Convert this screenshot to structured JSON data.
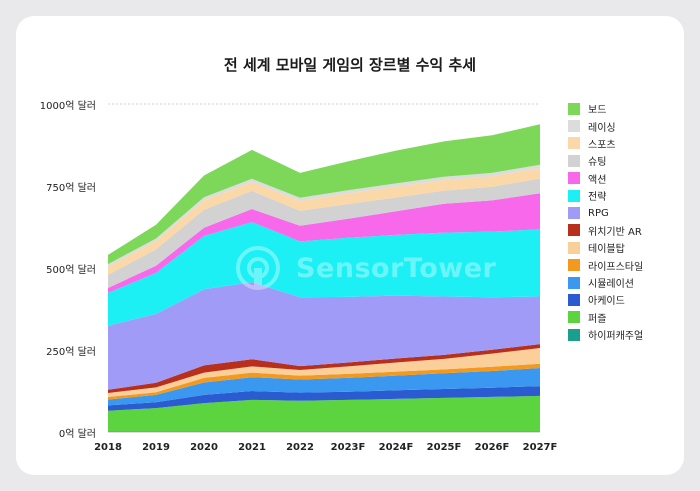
{
  "chart_data": {
    "type": "area",
    "title": "전 세계 모바일 게임의 장르별 수익 추세",
    "xlabel": "",
    "ylabel": "",
    "categories": [
      "2018",
      "2019",
      "2020",
      "2021",
      "2022",
      "2023F",
      "2024F",
      "2025F",
      "2026F",
      "2027F"
    ],
    "y_ticks": [
      "0억 달러",
      "250억 달러",
      "500억 달러",
      "750억 달러",
      "1000억 달러"
    ],
    "y_tick_values": [
      0,
      250,
      500,
      750,
      1000
    ],
    "ylim": [
      0,
      1000
    ],
    "stacked": true,
    "grid": "horizontal-top-only",
    "legend_position": "right",
    "series": [
      {
        "name": "하이퍼캐주얼",
        "color": "#1a9e8e",
        "values": [
          3,
          3,
          3,
          3,
          3,
          3,
          3,
          3,
          3,
          3
        ]
      },
      {
        "name": "퍼즐",
        "color": "#5cd43f",
        "values": [
          62,
          70,
          85,
          95,
          92,
          95,
          98,
          101,
          104,
          107
        ]
      },
      {
        "name": "아케이드",
        "color": "#2a5bd0",
        "values": [
          16,
          18,
          25,
          27,
          25,
          25,
          26,
          27,
          28,
          30
        ]
      },
      {
        "name": "시뮬레이션",
        "color": "#3a98f0",
        "values": [
          18,
          22,
          38,
          42,
          40,
          42,
          45,
          48,
          51,
          55
        ]
      },
      {
        "name": "라이프스타일",
        "color": "#f39a1e",
        "values": [
          8,
          8,
          14,
          14,
          12,
          12,
          12,
          12,
          13,
          13
        ]
      },
      {
        "name": "테이블탑",
        "color": "#fbcf99",
        "values": [
          12,
          15,
          16,
          19,
          17,
          23,
          28,
          32,
          40,
          48
        ]
      },
      {
        "name": "위치기반 AR",
        "color": "#b8301c",
        "values": [
          10,
          14,
          22,
          22,
          12,
          12,
          12,
          12,
          12,
          12
        ]
      },
      {
        "name": "RPG",
        "color": "#a19bf8",
        "values": [
          195,
          210,
          232,
          235,
          210,
          200,
          192,
          178,
          160,
          145
        ]
      },
      {
        "name": "전략",
        "color": "#1cf0f5",
        "values": [
          100,
          125,
          163,
          183,
          170,
          180,
          185,
          195,
          200,
          205
        ]
      },
      {
        "name": "액션",
        "color": "#f768ea",
        "values": [
          15,
          22,
          25,
          40,
          48,
          58,
          72,
          88,
          95,
          110
        ]
      },
      {
        "name": "슈팅",
        "color": "#d2d2d2",
        "values": [
          40,
          50,
          55,
          55,
          45,
          45,
          42,
          40,
          42,
          45
        ]
      },
      {
        "name": "스포츠",
        "color": "#fbd8a8",
        "values": [
          25,
          25,
          28,
          27,
          30,
          32,
          33,
          32,
          32,
          32
        ]
      },
      {
        "name": "레이싱",
        "color": "#dcdcdc",
        "values": [
          8,
          8,
          10,
          10,
          10,
          10,
          10,
          10,
          10,
          10
        ]
      },
      {
        "name": "보드",
        "color": "#7dd85a",
        "values": [
          28,
          42,
          66,
          88,
          76,
          88,
          100,
          108,
          115,
          123
        ]
      }
    ],
    "legend_order": [
      "보드",
      "레이싱",
      "스포츠",
      "슈팅",
      "액션",
      "전략",
      "RPG",
      "위치기반 AR",
      "테이블탑",
      "라이프스타일",
      "시뮬레이션",
      "아케이드",
      "퍼즐",
      "하이퍼캐주얼"
    ]
  },
  "watermark": "SensorTower"
}
